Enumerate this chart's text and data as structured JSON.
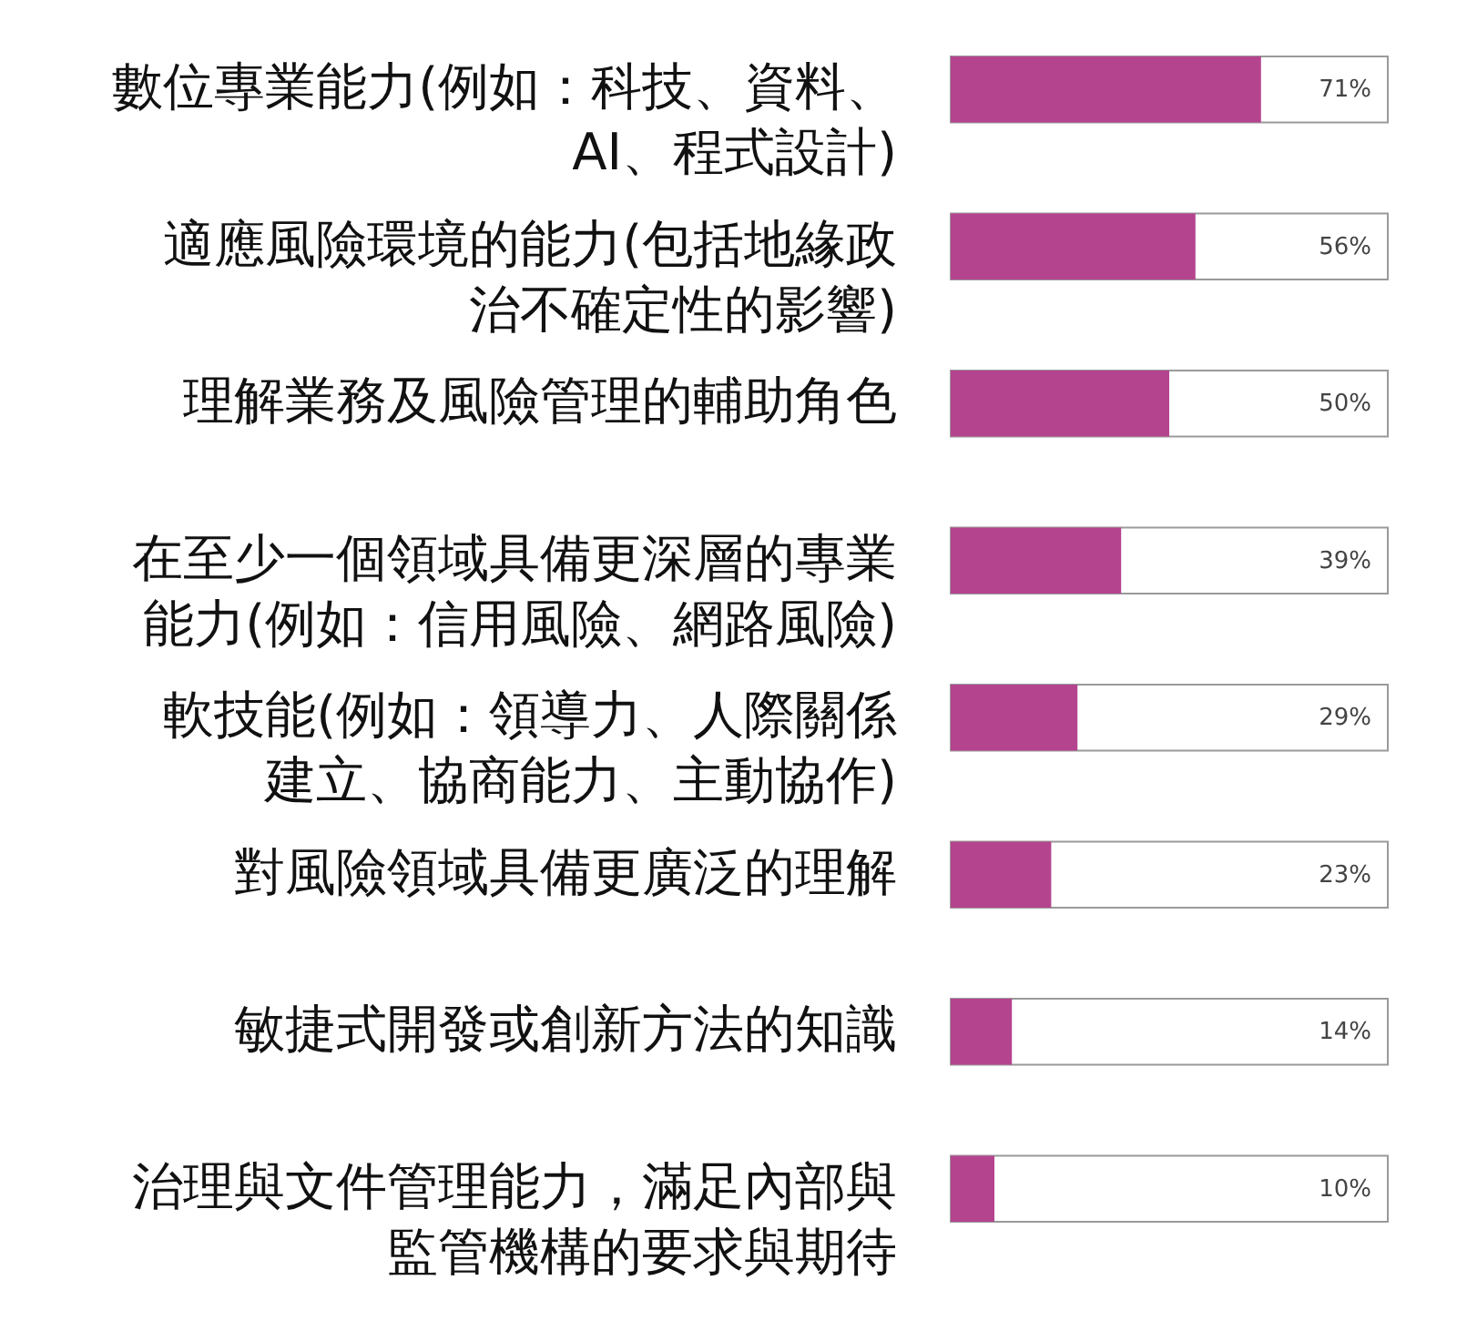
{
  "chart_data": {
    "type": "bar",
    "orientation": "horizontal",
    "categories": [
      "數位專業能力(例如：科技、資料、AI、程式設計)",
      "適應風險環境的能力(包括地緣政治不確定性的影響)",
      "理解業務及風險管理的輔助角色",
      "在至少一個領域具備更深層的專業能力(例如：信用風險、網路風險)",
      "軟技能(例如：領導力、人際關係建立、協商能力、主動協作)",
      "對風險領域具備更廣泛的理解",
      "敏捷式開發或創新方法的知識",
      "治理與文件管理能力，滿足內部與監管機構的要求與期待"
    ],
    "values": [
      71,
      56,
      50,
      39,
      29,
      23,
      14,
      10
    ],
    "value_labels": [
      "71%",
      "56%",
      "50%",
      "39%",
      "29%",
      "23%",
      "14%",
      "10%"
    ],
    "color": "#b5448f",
    "xlim": [
      0,
      100
    ],
    "tick_labels": "y"
  }
}
